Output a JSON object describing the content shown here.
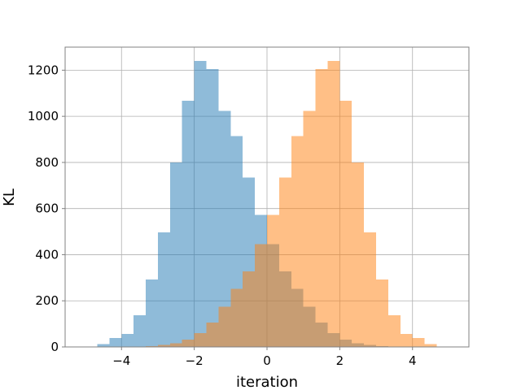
{
  "chart_data": {
    "type": "bar",
    "subtype": "overlapping-histogram",
    "title": "",
    "xlabel": "iteration",
    "ylabel": "KL",
    "xlim": [
      -5.55,
      5.55
    ],
    "ylim": [
      0,
      1300
    ],
    "xticks": [
      -4,
      -2,
      0,
      2,
      4
    ],
    "xtick_labels": [
      "−4",
      "−2",
      "0",
      "2",
      "4"
    ],
    "yticks": [
      0,
      200,
      400,
      600,
      800,
      1000,
      1200
    ],
    "ytick_labels": [
      "0",
      "200",
      "400",
      "600",
      "800",
      "1000",
      "1200"
    ],
    "grid": true,
    "legend": "none",
    "bin_width": 0.3333,
    "series": [
      {
        "color": "#1f77b4",
        "alpha": 0.5,
        "x_start": -5.0,
        "values": [
          2,
          12,
          38,
          57,
          138,
          293,
          497,
          800,
          1068,
          1240,
          1205,
          1024,
          915,
          735,
          573,
          445,
          327,
          252,
          175,
          105,
          60,
          32,
          15,
          8,
          3
        ]
      },
      {
        "color": "#ff7f0e",
        "alpha": 0.5,
        "x_start": -3.3333,
        "values": [
          3,
          8,
          15,
          32,
          60,
          105,
          175,
          252,
          327,
          445,
          573,
          735,
          915,
          1024,
          1205,
          1240,
          1068,
          800,
          497,
          293,
          138,
          57,
          38,
          12,
          2
        ]
      }
    ]
  }
}
